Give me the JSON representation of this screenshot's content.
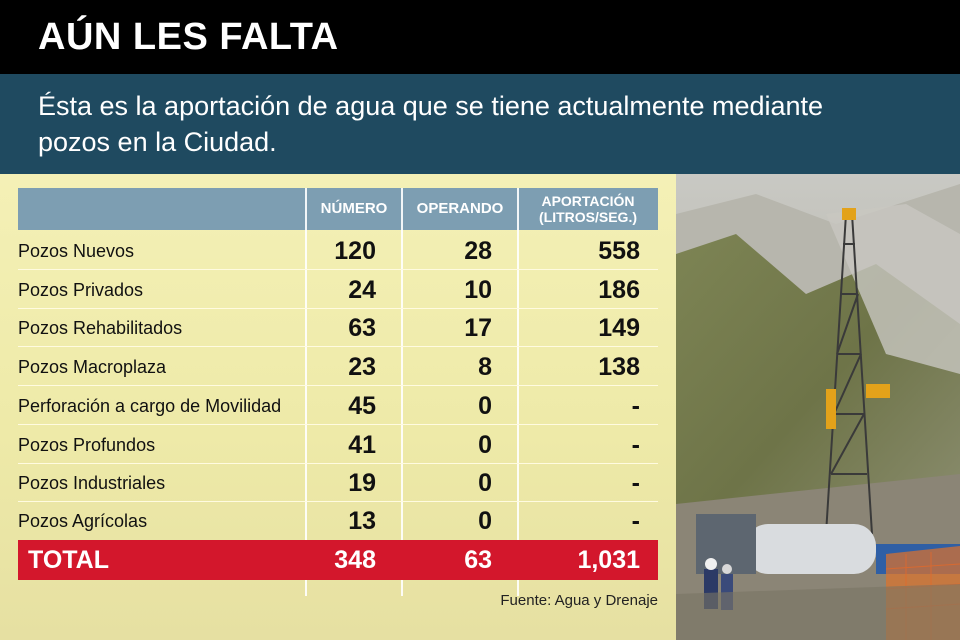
{
  "title": "AÚN LES FALTA",
  "subtitle_line1": "Ésta es la aportación de agua que se tiene actualmente mediante",
  "subtitle_line2": "pozos en la Ciudad.",
  "table": {
    "headers": {
      "numero": "NÚMERO",
      "operando": "OPERANDO",
      "aportacion_line1": "APORTACIÓN",
      "aportacion_line2": "(LITROS/SEG.)"
    },
    "rows": [
      {
        "label": "Pozos Nuevos",
        "numero": "120",
        "operando": "28",
        "aportacion": "558"
      },
      {
        "label": "Pozos Privados",
        "numero": "24",
        "operando": "10",
        "aportacion": "186"
      },
      {
        "label": "Pozos Rehabilitados",
        "numero": "63",
        "operando": "17",
        "aportacion": "149"
      },
      {
        "label": "Pozos Macroplaza",
        "numero": "23",
        "operando": "8",
        "aportacion": "138"
      },
      {
        "label": "Perforación a cargo de Movilidad",
        "numero": "45",
        "operando": "0",
        "aportacion": "-"
      },
      {
        "label": "Pozos Profundos",
        "numero": "41",
        "operando": "0",
        "aportacion": "-"
      },
      {
        "label": "Pozos Industriales",
        "numero": "19",
        "operando": "0",
        "aportacion": "-"
      },
      {
        "label": "Pozos Agrícolas",
        "numero": "13",
        "operando": "0",
        "aportacion": "-"
      }
    ],
    "total": {
      "label": "TOTAL",
      "numero": "348",
      "operando": "63",
      "aportacion": "1,031"
    }
  },
  "source": "Fuente: Agua y Drenaje",
  "colors": {
    "title_bg": "#000000",
    "subtitle_bg": "#1f4a60",
    "header_bg": "#7d9eb2",
    "total_bg": "#d3172c",
    "table_bg": "#f3efb0"
  },
  "photo_icon": "drilling-rig-photo"
}
